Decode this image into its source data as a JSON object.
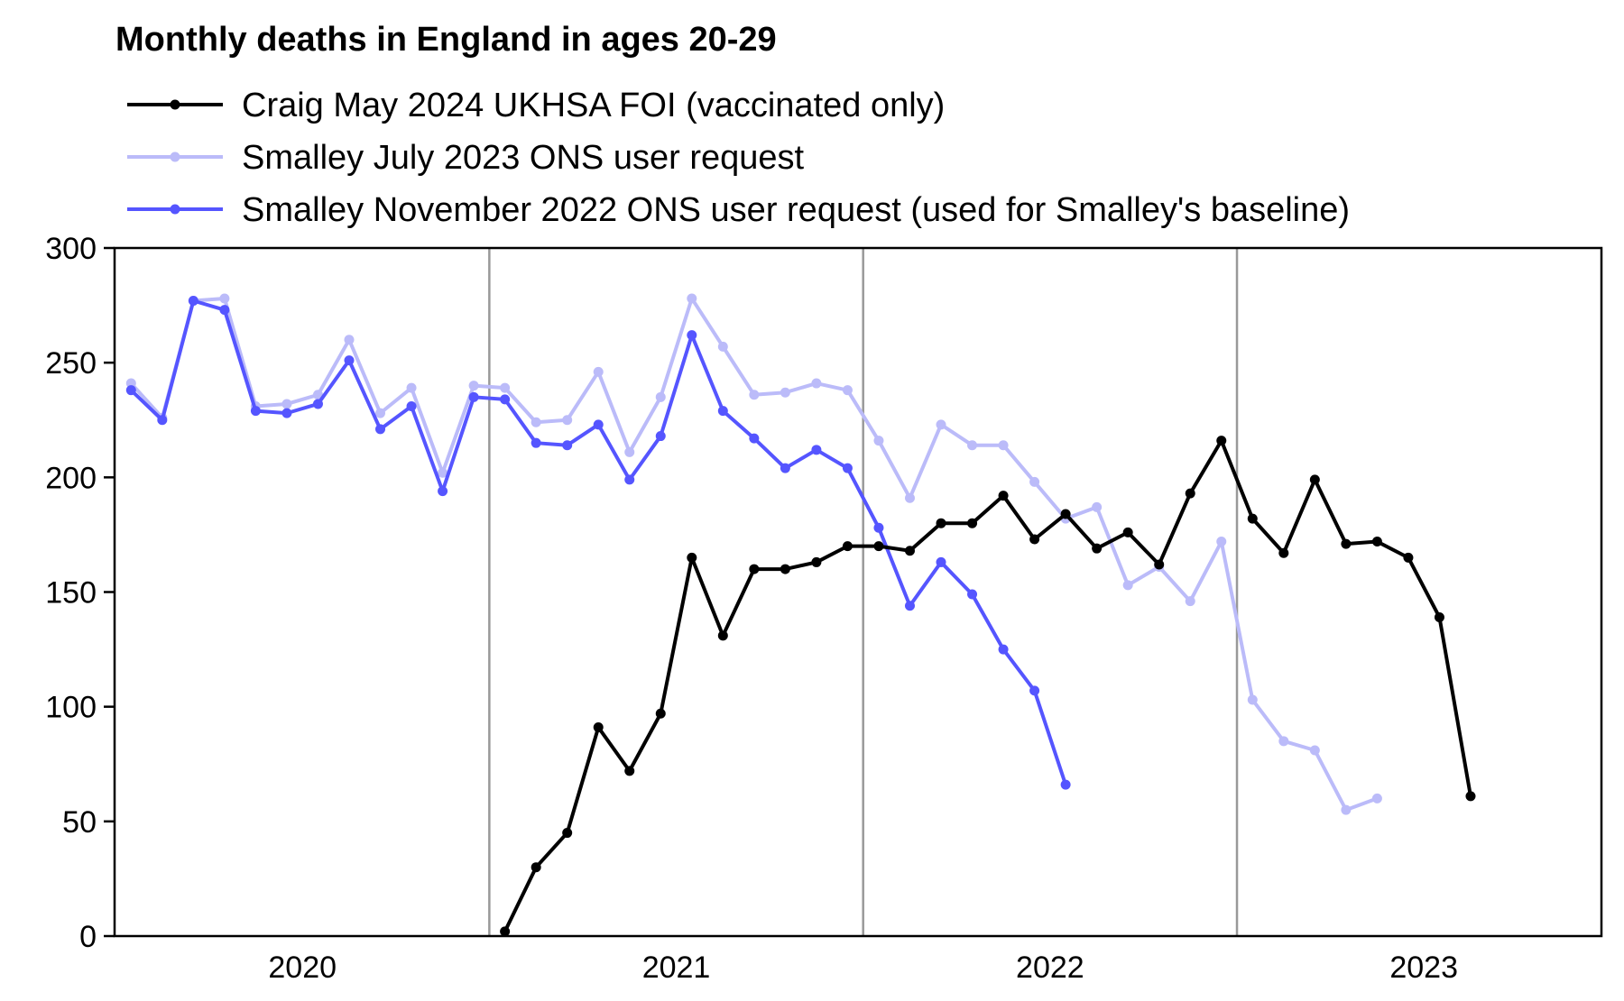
{
  "chart_data": {
    "type": "line",
    "title": "Monthly deaths in England in ages 20-29",
    "xlabel": "",
    "ylabel": "",
    "ylim": [
      0,
      300
    ],
    "yticks": [
      0,
      50,
      100,
      150,
      200,
      250,
      300
    ],
    "x_unit": "month",
    "x_start": "2020-01",
    "xtick_labels": [
      "2020",
      "2021",
      "2022",
      "2023"
    ],
    "year_gridlines": [
      "2021-01",
      "2022-01",
      "2023-01"
    ],
    "grid": "vertical lines at year boundaries",
    "legend_position": "top-left, above plot",
    "series": [
      {
        "name": "Craig May 2024 UKHSA FOI (vaccinated only)",
        "color": "#000000",
        "start": "2021-01",
        "values": [
          2,
          30,
          45,
          91,
          72,
          97,
          165,
          131,
          160,
          160,
          163,
          170,
          170,
          168,
          180,
          180,
          192,
          173,
          184,
          169,
          176,
          162,
          193,
          216,
          182,
          167,
          199,
          171,
          172,
          165,
          139,
          61
        ]
      },
      {
        "name": "Smalley July 2023 ONS user request",
        "color": "#bbbbf9",
        "start": "2020-01",
        "values": [
          241,
          226,
          277,
          278,
          231,
          232,
          236,
          260,
          228,
          239,
          202,
          240,
          239,
          224,
          225,
          246,
          211,
          235,
          278,
          257,
          236,
          237,
          241,
          238,
          216,
          191,
          223,
          214,
          214,
          198,
          182,
          187,
          153,
          161,
          146,
          172,
          103,
          85,
          81,
          55,
          60
        ]
      },
      {
        "name": "Smalley November 2022 ONS user request (used for Smalley's baseline)",
        "color": "#5555ff",
        "start": "2020-01",
        "values": [
          238,
          225,
          277,
          273,
          229,
          228,
          232,
          251,
          221,
          231,
          194,
          235,
          234,
          215,
          214,
          223,
          199,
          218,
          262,
          229,
          217,
          204,
          212,
          204,
          178,
          144,
          163,
          149,
          125,
          107,
          66
        ]
      }
    ]
  }
}
